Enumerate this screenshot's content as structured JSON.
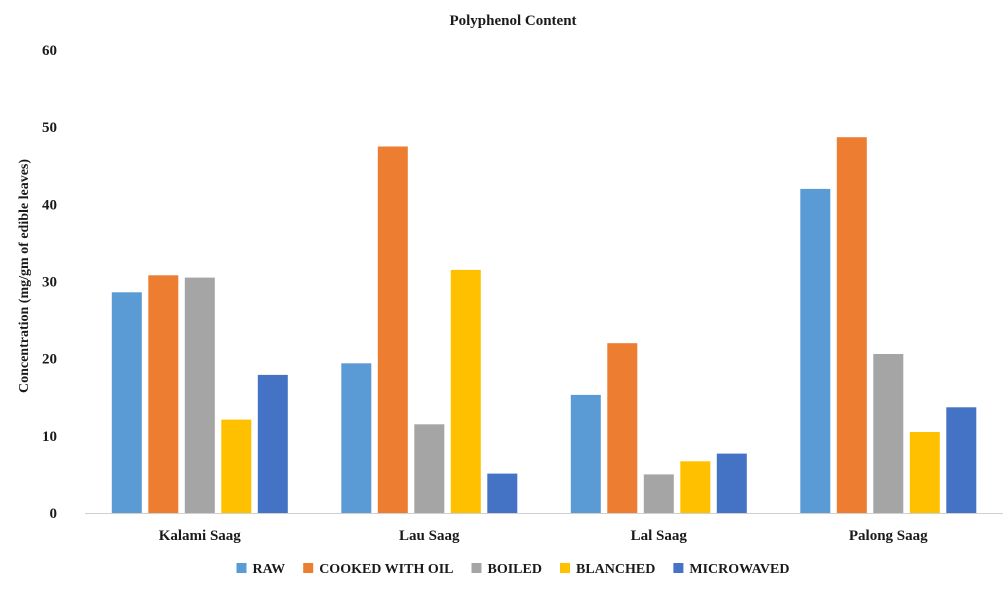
{
  "chart_data": {
    "type": "bar",
    "title": "Polyphenol Content",
    "xlabel": "",
    "ylabel": "Concentration (mg/gm of  edible leaves)",
    "ylim": [
      0,
      60
    ],
    "yticks": [
      0,
      10,
      20,
      30,
      40,
      50,
      60
    ],
    "grid": false,
    "legend_position": "bottom",
    "categories": [
      "Kalami Saag",
      "Lau Saag",
      "Lal Saag",
      "Palong Saag"
    ],
    "series": [
      {
        "name": "RAW",
        "color": "#5B9BD5",
        "values": [
          28.6,
          19.4,
          15.3,
          42.0
        ]
      },
      {
        "name": "COOKED WITH OIL",
        "color": "#ED7D31",
        "values": [
          30.8,
          47.5,
          22.0,
          48.7
        ]
      },
      {
        "name": "BOILED",
        "color": "#A5A5A5",
        "values": [
          30.5,
          11.5,
          5.0,
          20.6
        ]
      },
      {
        "name": "BLANCHED",
        "color": "#FFC000",
        "values": [
          12.1,
          31.5,
          6.7,
          10.5
        ]
      },
      {
        "name": "MICROWAVED",
        "color": "#4472C4",
        "values": [
          17.9,
          5.1,
          7.7,
          13.7
        ]
      }
    ]
  }
}
